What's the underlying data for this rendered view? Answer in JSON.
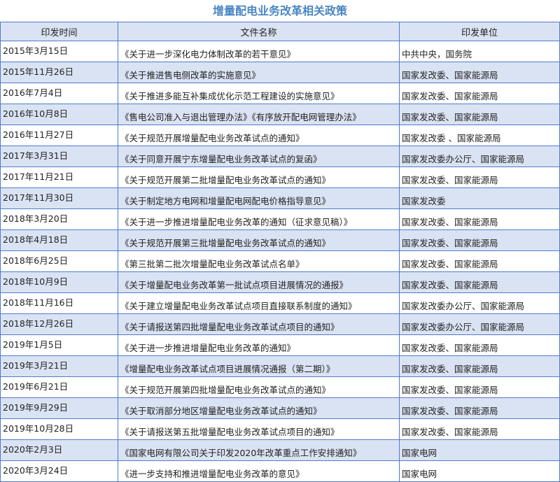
{
  "title": "增量配电业务改革相关政策",
  "colors": {
    "title": "#4a86c5",
    "border": "#4f7cc9",
    "alt_row": "#dae3f3"
  },
  "headers": [
    "印发时间",
    "文件名称",
    "印发单位"
  ],
  "rows": [
    {
      "date": "2015年3月15日",
      "name": "《关于进一步深化电力体制改革的若干意见》",
      "unit": "中共中央，国务院"
    },
    {
      "date": "2015年11月26日",
      "name": "《关于推进售电侧改革的实施意见》",
      "unit": "国家发改委、国家能源局"
    },
    {
      "date": "2016年7月4日",
      "name": "《关于推进多能互补集成优化示范工程建设的实施意见》",
      "unit": "国家发改委、国家能源局"
    },
    {
      "date": "2016年10月8日",
      "name": "《售电公司准入与退出管理办法》《有序放开配电网管理办法》",
      "unit": "国家发改委、国家能源局"
    },
    {
      "date": "2016年11月27日",
      "name": "《关于规范开展增量配电业务改革试点的通知》",
      "unit": "国家发改委 、国家能源局"
    },
    {
      "date": "2017年3月31日",
      "name": "《关于同意开展宁东增量配电业务改革试点的复函》",
      "unit": "国家发改委办公厅、国家能源局"
    },
    {
      "date": "2017年11月21日",
      "name": "《关于规范开展第二批增量配电业务改革试点的通知》",
      "unit": "国家发改委、国家能源局"
    },
    {
      "date": "2017年11月30日",
      "name": "《关于制定地方电网和增量配电网配电价格指导意见》",
      "unit": "国家发改委"
    },
    {
      "date": "2018年3月20日",
      "name": "《关于进一步推进增量配电业务改革的通知（征求意见稿）》",
      "unit": "国家发改委、国家能源局"
    },
    {
      "date": "2018年4月18日",
      "name": "《关于规范开展第三批增量配电业务改革试点的通知》",
      "unit": "国家发改委、国家能源局"
    },
    {
      "date": "2018年6月25日",
      "name": "《第三批第二批次增量配电业务改革试点名单》",
      "unit": "国家发改委、国家能源局"
    },
    {
      "date": "2018年10月9日",
      "name": "《关于增量配电业务改革第一批试点项目进展情况的通报》",
      "unit": "国家发改委、国家能源局"
    },
    {
      "date": "2018年11月16日",
      "name": "《关于建立增量配电业务改革试点项目直接联系制度的通知》",
      "unit": "国家发改委办公厅、国家能源局"
    },
    {
      "date": "2018年12月26日",
      "name": "《关于请报送第四批增量配电业务改革试点项目的通知》",
      "unit": "国家发改委办公厅、国家能源局"
    },
    {
      "date": "2019年1月5日",
      "name": "《关于进一步推进增量配电业务改革的通知》",
      "unit": "国家发改委、国家能源局"
    },
    {
      "date": "2019年3月21日",
      "name": "《增量配电业务改革试点项目进展情况通报（第二期）》",
      "unit": "国家发改委、国家能源局"
    },
    {
      "date": "2019年6月21日",
      "name": "《关于规范开展第四批增量配电业务改革试点的通知》",
      "unit": "国家发改委、国家能源局"
    },
    {
      "date": "2019年9月29日",
      "name": "《关于取消部分地区增量配电业务改革试点的通知》",
      "unit": "国家发改委、国家能源局"
    },
    {
      "date": "2019年10月28日",
      "name": "《关于请报送第五批增量配电业务改革试点项目的通知》",
      "unit": "国家发改委、国家能源局"
    },
    {
      "date": "2020年2月3日",
      "name": "《国家电网有限公司关于印发2020年改革重点工作安排通知》",
      "unit": "国家电网"
    },
    {
      "date": "2020年3月24日",
      "name": "《进一步支持和推进增量配电业务改革的意见》",
      "unit": "国家电网"
    }
  ]
}
